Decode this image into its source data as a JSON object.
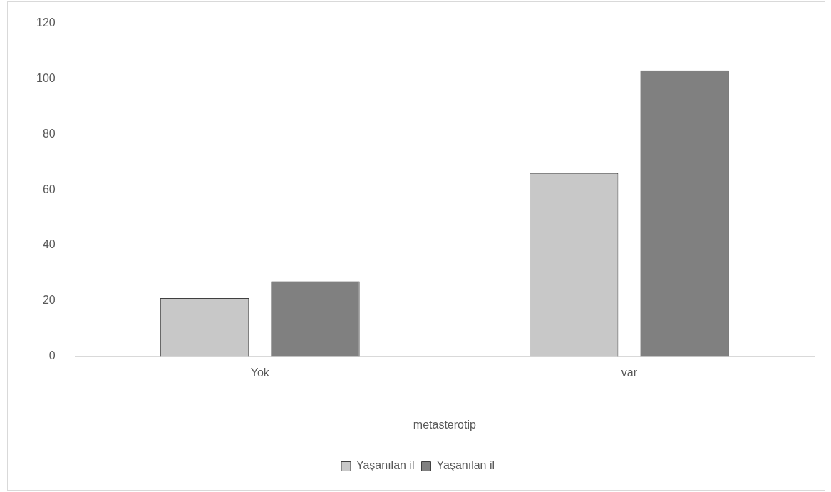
{
  "chart_data": {
    "type": "bar",
    "categories": [
      "Yok",
      "var"
    ],
    "xlabel": "metasterotip",
    "series": [
      {
        "name": "Yaşanılan il",
        "color": "#c8c8c8",
        "values": [
          21,
          66
        ]
      },
      {
        "name": "Yaşanılan il",
        "color": "#808080",
        "values": [
          27,
          103
        ]
      }
    ],
    "ylim": [
      0,
      120
    ],
    "yticks": [
      0,
      20,
      40,
      60,
      80,
      100,
      120
    ],
    "grid": false,
    "legend": "bottom"
  }
}
